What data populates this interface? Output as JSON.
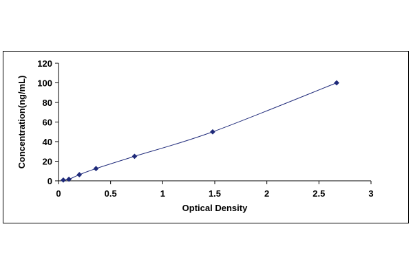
{
  "chart_data": {
    "type": "scatter",
    "title": "",
    "xlabel": "Optical Density",
    "ylabel": "Concentration(ng/mL)",
    "xlim": [
      0,
      3
    ],
    "ylim": [
      0,
      120
    ],
    "xticks": [
      "0",
      "0.5",
      "1",
      "1.5",
      "2",
      "2.5",
      "3"
    ],
    "yticks": [
      "0",
      "20",
      "40",
      "60",
      "80",
      "100",
      "120"
    ],
    "grid": false,
    "legend": "none",
    "marker_color": "#1f2a7a",
    "line_color": "#1f2a7a",
    "trendline": "smooth",
    "points": [
      {
        "x": 0.046,
        "y": 0.78
      },
      {
        "x": 0.1,
        "y": 1.56
      },
      {
        "x": 0.2,
        "y": 6.25
      },
      {
        "x": 0.36,
        "y": 12.5
      },
      {
        "x": 0.73,
        "y": 25
      },
      {
        "x": 1.48,
        "y": 50
      },
      {
        "x": 2.67,
        "y": 100
      }
    ]
  }
}
